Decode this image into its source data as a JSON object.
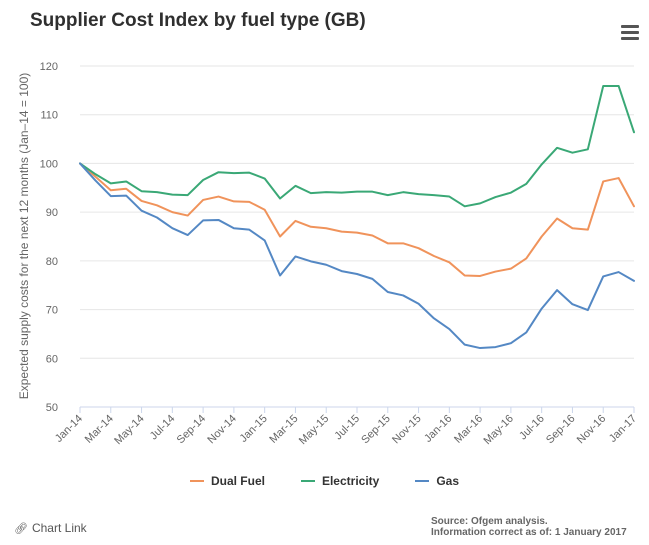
{
  "header": {
    "title": "Supplier Cost Index by fuel type (GB)"
  },
  "toolbar": {
    "menu_icon": "hamburger-menu-icon"
  },
  "footer": {
    "chart_link_label": "Chart Link",
    "chart_link_icon": "link-icon",
    "source_line1": "Source: Ofgem analysis.",
    "source_line2": "Information correct as of: 1 January 2017"
  },
  "chart_data": {
    "type": "line",
    "title": "Supplier Cost Index by fuel type (GB)",
    "xlabel": "",
    "ylabel": "Expected supply costs for the next 12 months (Jan–14 = 100)",
    "ylim": [
      50,
      120
    ],
    "yticks": [
      50,
      60,
      70,
      80,
      90,
      100,
      110,
      120
    ],
    "grid": true,
    "legend_position": "bottom",
    "x": [
      "Jan-14",
      "Feb-14",
      "Mar-14",
      "Apr-14",
      "May-14",
      "Jun-14",
      "Jul-14",
      "Aug-14",
      "Sep-14",
      "Oct-14",
      "Nov-14",
      "Dec-14",
      "Jan-15",
      "Feb-15",
      "Mar-15",
      "Apr-15",
      "May-15",
      "Jun-15",
      "Jul-15",
      "Aug-15",
      "Sep-15",
      "Oct-15",
      "Nov-15",
      "Dec-15",
      "Jan-16",
      "Feb-16",
      "Mar-16",
      "Apr-16",
      "May-16",
      "Jun-16",
      "Jul-16",
      "Aug-16",
      "Sep-16",
      "Oct-16",
      "Nov-16",
      "Dec-16",
      "Jan-17"
    ],
    "xtick_labels": [
      "Jan-14",
      "Mar-14",
      "May-14",
      "Jul-14",
      "Sep-14",
      "Nov-14",
      "Jan-15",
      "Mar-15",
      "May-15",
      "Jul-15",
      "Sep-15",
      "Nov-15",
      "Jan-16",
      "Mar-16",
      "May-16",
      "Jul-16",
      "Sep-16",
      "Nov-16",
      "Jan-17"
    ],
    "series": [
      {
        "name": "Dual Fuel",
        "color": "#f0935b",
        "values": [
          100,
          97.3,
          94.5,
          94.8,
          92.3,
          91.4,
          90,
          89.3,
          92.5,
          93.2,
          92.2,
          92.1,
          90.5,
          85,
          88.2,
          87,
          86.7,
          86,
          85.8,
          85.2,
          83.6,
          83.6,
          82.6,
          81,
          79.7,
          77,
          76.9,
          77.8,
          78.4,
          80.5,
          85,
          88.7,
          86.7,
          86.4,
          96.3,
          97,
          91.2
        ]
      },
      {
        "name": "Electricity",
        "color": "#3aa876",
        "values": [
          100,
          97.8,
          95.9,
          96.3,
          94.3,
          94.1,
          93.6,
          93.5,
          96.6,
          98.2,
          98,
          98.1,
          96.9,
          92.8,
          95.4,
          93.9,
          94.1,
          94,
          94.2,
          94.2,
          93.5,
          94.1,
          93.7,
          93.5,
          93.2,
          91.2,
          91.8,
          93.1,
          94,
          95.8,
          99.8,
          103.2,
          102.2,
          102.9,
          115.9,
          115.9,
          106.4
        ]
      },
      {
        "name": "Gas",
        "color": "#5488c4",
        "values": [
          100,
          96.5,
          93.3,
          93.4,
          90.3,
          88.9,
          86.7,
          85.3,
          88.3,
          88.4,
          86.7,
          86.4,
          84.2,
          77,
          80.9,
          79.9,
          79.2,
          77.9,
          77.3,
          76.3,
          73.6,
          72.9,
          71.2,
          68.2,
          66,
          62.8,
          62.1,
          62.3,
          63.1,
          65.3,
          70.2,
          74,
          71.1,
          69.9,
          76.8,
          77.7,
          75.9
        ]
      }
    ]
  }
}
